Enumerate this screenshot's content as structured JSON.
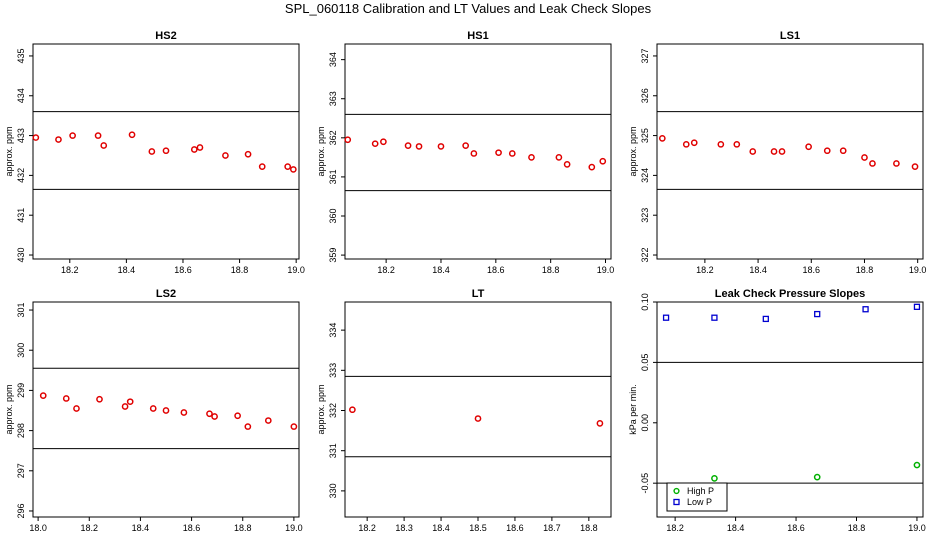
{
  "suptitle": "SPL_060118  Calibration and LT Values and Leak Check Slopes",
  "colors": {
    "calibration": "#e00000",
    "high_p": "#00b000",
    "low_p": "#0000d0",
    "axis": "#000000"
  },
  "chart_data": [
    {
      "type": "scatter",
      "title": "HS2",
      "ylabel": "approx. ppm",
      "xlim": [
        18.07,
        19.01
      ],
      "ylim": [
        429.9,
        435.3
      ],
      "xticks": [
        18.2,
        18.4,
        18.6,
        18.8,
        19.0
      ],
      "yticks": [
        430,
        431,
        432,
        433,
        434,
        435
      ],
      "hlines": [
        433.6,
        431.65
      ],
      "series": [
        {
          "color": "#e00000",
          "marker": "circle",
          "x": [
            18.08,
            18.16,
            18.21,
            18.3,
            18.32,
            18.42,
            18.49,
            18.54,
            18.64,
            18.66,
            18.75,
            18.83,
            18.88,
            18.97,
            18.99
          ],
          "y": [
            432.95,
            432.9,
            433.0,
            433.0,
            432.75,
            433.02,
            432.6,
            432.62,
            432.65,
            432.7,
            432.5,
            432.53,
            432.22,
            432.22,
            432.15
          ]
        }
      ]
    },
    {
      "type": "scatter",
      "title": "HS1",
      "ylabel": "approx. ppm",
      "xlim": [
        18.05,
        19.02
      ],
      "ylim": [
        358.9,
        364.4
      ],
      "xticks": [
        18.2,
        18.4,
        18.6,
        18.8,
        19.0
      ],
      "yticks": [
        359,
        360,
        361,
        362,
        363,
        364
      ],
      "hlines": [
        362.6,
        360.65
      ],
      "series": [
        {
          "color": "#e00000",
          "marker": "circle",
          "x": [
            18.06,
            18.16,
            18.19,
            18.28,
            18.32,
            18.4,
            18.49,
            18.52,
            18.61,
            18.66,
            18.73,
            18.83,
            18.86,
            18.95,
            18.99
          ],
          "y": [
            361.95,
            361.85,
            361.9,
            361.8,
            361.78,
            361.78,
            361.8,
            361.6,
            361.62,
            361.6,
            361.5,
            361.5,
            361.32,
            361.25,
            361.4
          ]
        }
      ]
    },
    {
      "type": "scatter",
      "title": "LS1",
      "ylabel": "approx. ppm",
      "xlim": [
        18.02,
        19.02
      ],
      "ylim": [
        321.9,
        327.3
      ],
      "xticks": [
        18.2,
        18.4,
        18.6,
        18.8,
        19.0
      ],
      "yticks": [
        322,
        323,
        324,
        325,
        326,
        327
      ],
      "hlines": [
        325.6,
        323.65
      ],
      "series": [
        {
          "color": "#e00000",
          "marker": "circle",
          "x": [
            18.04,
            18.13,
            18.16,
            18.26,
            18.32,
            18.38,
            18.46,
            18.49,
            18.59,
            18.66,
            18.72,
            18.8,
            18.83,
            18.92,
            18.99
          ],
          "y": [
            324.93,
            324.78,
            324.82,
            324.78,
            324.78,
            324.6,
            324.6,
            324.6,
            324.72,
            324.62,
            324.62,
            324.45,
            324.3,
            324.3,
            324.22
          ]
        }
      ]
    },
    {
      "type": "scatter",
      "title": "LS2",
      "ylabel": "approx. ppm",
      "xlim": [
        17.98,
        19.02
      ],
      "ylim": [
        295.85,
        301.2
      ],
      "xticks": [
        18.0,
        18.2,
        18.4,
        18.6,
        18.8,
        19.0
      ],
      "yticks": [
        296,
        297,
        298,
        299,
        300,
        301
      ],
      "hlines": [
        299.55,
        297.55
      ],
      "series": [
        {
          "color": "#e00000",
          "marker": "circle",
          "x": [
            18.02,
            18.11,
            18.15,
            18.24,
            18.34,
            18.36,
            18.45,
            18.5,
            18.57,
            18.67,
            18.69,
            18.78,
            18.82,
            18.9,
            19.0
          ],
          "y": [
            298.87,
            298.8,
            298.55,
            298.78,
            298.6,
            298.72,
            298.55,
            298.5,
            298.45,
            298.42,
            298.35,
            298.37,
            298.1,
            298.25,
            298.1
          ]
        }
      ]
    },
    {
      "type": "scatter",
      "title": "LT",
      "ylabel": "approx. ppm",
      "xlim": [
        18.14,
        18.86
      ],
      "ylim": [
        329.35,
        334.7
      ],
      "xticks": [
        18.2,
        18.3,
        18.4,
        18.5,
        18.6,
        18.7,
        18.8
      ],
      "yticks": [
        330,
        331,
        332,
        333,
        334
      ],
      "hlines": [
        332.85,
        330.85
      ],
      "series": [
        {
          "color": "#e00000",
          "marker": "circle",
          "x": [
            18.16,
            18.5,
            18.83
          ],
          "y": [
            332.02,
            331.8,
            331.68
          ]
        }
      ]
    },
    {
      "type": "scatter",
      "title": "Leak Check Pressure Slopes",
      "ylabel": "kPa per min.",
      "xlim": [
        18.14,
        19.02
      ],
      "ylim": [
        -0.078,
        0.1
      ],
      "xticks": [
        18.2,
        18.4,
        18.6,
        18.8,
        19.0
      ],
      "yticks": [
        -0.05,
        0.0,
        0.05,
        0.1
      ],
      "ytick_labels": [
        "-0.05",
        "0.00",
        "0.05",
        "0.10"
      ],
      "hlines": [
        0.05,
        -0.05
      ],
      "legend": "bottom-left",
      "series": [
        {
          "name": "High P",
          "color": "#00b000",
          "marker": "circle",
          "x": [
            18.33,
            18.67,
            19.0
          ],
          "y": [
            -0.046,
            -0.045,
            -0.035
          ]
        },
        {
          "name": "Low P",
          "color": "#0000d0",
          "marker": "square",
          "x": [
            18.17,
            18.33,
            18.5,
            18.67,
            18.83,
            19.0
          ],
          "y": [
            0.087,
            0.087,
            0.086,
            0.09,
            0.094,
            0.096
          ]
        }
      ]
    }
  ]
}
